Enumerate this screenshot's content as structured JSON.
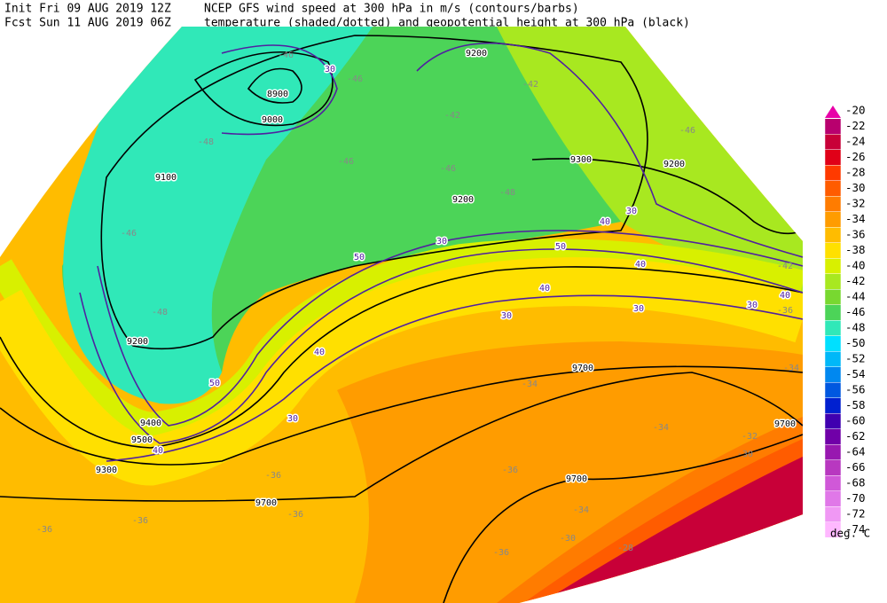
{
  "header": {
    "init": "Init  Fri 09 AUG 2019 12Z",
    "fcst": "Fcst Sun 11 AUG 2019 06Z",
    "line1": "NCEP GFS wind speed at 300 hPa in m/s (contours/barbs)",
    "line2": "temperature (shaded/dotted) and geopotential height at 300 hPa (black)"
  },
  "colorbar": {
    "levels": [
      -20,
      -22,
      -24,
      -26,
      -28,
      -30,
      -32,
      -34,
      -36,
      -38,
      -40,
      -42,
      -44,
      -46,
      -48,
      -50,
      -52,
      -54,
      -56,
      -58,
      -60,
      -62,
      -64,
      -66,
      -68,
      -70,
      -72,
      -74
    ],
    "colors": [
      "#e800a8",
      "#b8006e",
      "#c80038",
      "#e00018",
      "#ff3a00",
      "#ff5c00",
      "#ff7c00",
      "#ff9c00",
      "#ffbc00",
      "#ffe000",
      "#d8f000",
      "#a8e820",
      "#78d830",
      "#4cd458",
      "#30e8b8",
      "#00e0ff",
      "#00b8f8",
      "#0088f0",
      "#0058e0",
      "#0020d0",
      "#4000b0",
      "#7000a8",
      "#9818b0",
      "#b838c0",
      "#d058d8",
      "#e078e8",
      "#f098f4",
      "#ffb8ff"
    ],
    "unit": "deg. C"
  },
  "contour_labels": {
    "height": [
      8900,
      9000,
      9100,
      9200,
      9300,
      9200,
      9200,
      9200,
      9700,
      9700,
      9700,
      9700,
      9500,
      9400,
      9300
    ],
    "wind": [
      30,
      30,
      40,
      30,
      50,
      50,
      40,
      30,
      40,
      50,
      30,
      40,
      30,
      40,
      40,
      30
    ],
    "temperature": [
      -46,
      -46,
      -42,
      -42,
      -46,
      -48,
      -46,
      -46,
      -48,
      -46,
      -48,
      -42,
      -36,
      -34,
      -34,
      -34,
      -32,
      -30,
      -36,
      -34,
      -30,
      -28,
      -36,
      -36,
      -36,
      -36,
      -36
    ]
  }
}
